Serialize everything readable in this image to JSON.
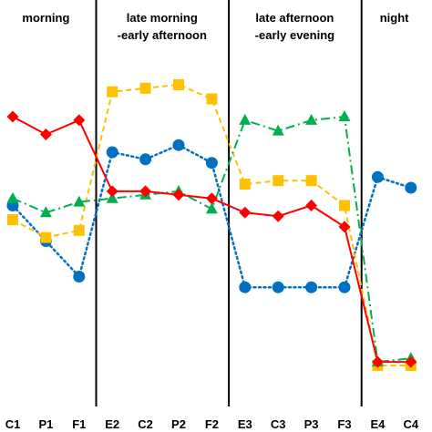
{
  "chart_data": {
    "type": "line",
    "title": "",
    "xlabel": "",
    "ylabel": "",
    "grid": false,
    "ylim": [
      0,
      100
    ],
    "categories": [
      "C1",
      "P1",
      "F1",
      "E2",
      "C2",
      "P2",
      "F2",
      "E3",
      "C3",
      "P3",
      "F3",
      "E4",
      "C4"
    ],
    "phases": [
      {
        "label": "morning",
        "start": 0,
        "end": 2
      },
      {
        "label": "late morning\n-early afternoon",
        "start": 3,
        "end": 6
      },
      {
        "label": "late afternoon\n-early evening",
        "start": 7,
        "end": 10
      },
      {
        "label": "night",
        "start": 11,
        "end": 12
      }
    ],
    "separators_after": [
      2,
      6,
      10
    ],
    "series": [
      {
        "color": "#0070C0",
        "marker": "circle",
        "line": "dotted",
        "values": [
          55,
          45,
          35,
          70,
          68,
          72,
          67,
          32,
          32,
          32,
          32,
          63,
          60
        ]
      },
      {
        "color": "#FFC000",
        "marker": "square",
        "line": "dashed",
        "values": [
          51,
          46,
          48,
          87,
          88,
          89,
          85,
          61,
          62,
          62,
          55,
          10,
          10
        ]
      },
      {
        "color": "#00B050",
        "marker": "triangle",
        "line": "dashdot",
        "values": [
          57,
          53,
          56,
          57,
          58,
          59,
          54,
          79,
          76,
          79,
          80,
          11,
          12
        ]
      },
      {
        "color": "#FF0000",
        "marker": "diamond",
        "line": "solid",
        "values": [
          80,
          75,
          79,
          59,
          59,
          58,
          57,
          53,
          52,
          55,
          49,
          11,
          11
        ]
      }
    ]
  }
}
